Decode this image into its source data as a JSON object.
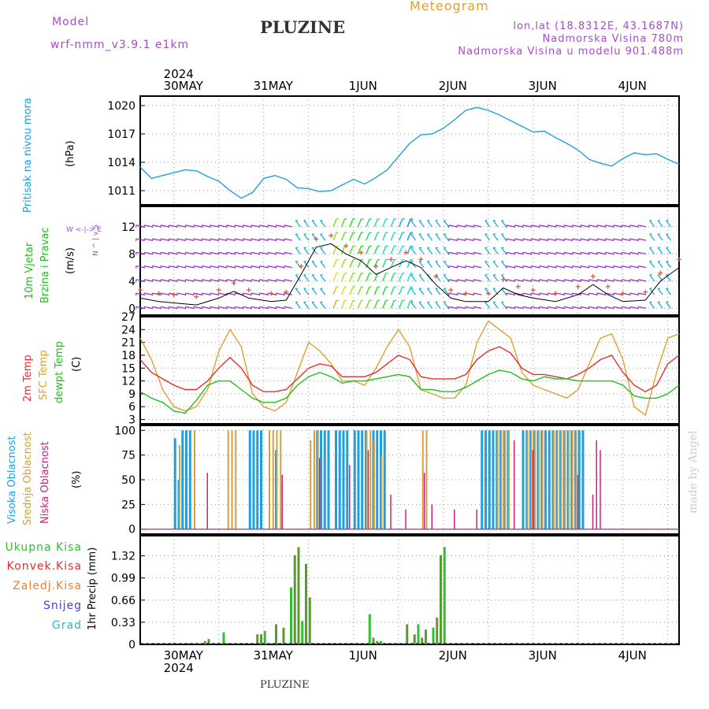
{
  "header": {
    "model_label": "Model",
    "model_name": "wrf-nmm_v3.9.1 e1km",
    "station": "PLUZINE",
    "title": "Meteogram",
    "lonlat": "lon,lat (18.8312E, 43.1687N)",
    "elevation": "Nadmorska Visina 780m",
    "model_elevation": "Nadmorska Visina u modelu 901.488m",
    "footer": "PLUZINE",
    "credit": "made by Angel"
  },
  "time_axis": {
    "year": "2024",
    "days": [
      "30MAY",
      "31MAY",
      "1JUN",
      "2JUN",
      "3JUN",
      "4JUN"
    ],
    "hours_per_day": 24,
    "first_day_offset_hours": 9,
    "span_hours": 144
  },
  "colors": {
    "pressure": "#1ea0e0",
    "temp2m": "#e03030",
    "sfc": "#e0a030",
    "dewpt": "#20c020",
    "high_cloud": "#1ea0e0",
    "mid_cloud": "#d4a040",
    "low_cloud": "#d02080",
    "precip_total": "#30c030",
    "precip_conv": "#e03030",
    "precip_bar": "#5a9a30",
    "snow": "#4040e0",
    "grad": "#20c0c0",
    "calm_barb": "#9932cc",
    "gust_marks": "#e05030"
  },
  "panels": {
    "pressure": {
      "labels": [
        "Pritisak na nivou mora",
        "(hPa)"
      ],
      "yticks": [
        "1011",
        "1014",
        "1017",
        "1020"
      ]
    },
    "wind": {
      "labels": [
        "10m Vjetar",
        "Brzina i Pravac",
        "(m/s)"
      ],
      "yticks": [
        "0",
        "4",
        "8",
        "12"
      ],
      "compass": "W <-|-> E",
      "compass_v": "N ^ | v S"
    },
    "temp": {
      "labels": [
        "2m Temp",
        "SFC Temp",
        "dewpt Temp",
        "(C)"
      ],
      "yticks": [
        "3",
        "6",
        "9",
        "12",
        "15",
        "18",
        "21",
        "24",
        "27"
      ]
    },
    "cloud": {
      "labels": [
        "Visoka Oblacnost",
        "Srednja Oblacnost",
        "Niska Oblacnost",
        "(%)"
      ],
      "yticks": [
        "0",
        "25",
        "50",
        "75",
        "100"
      ]
    },
    "precip": {
      "labels": [
        "Ukupna Kisa",
        "Konvek.Kisa",
        "Zaledj.Kisa",
        "Snijeg",
        "Grad",
        "1hr Precip (mm)"
      ],
      "yticks": [
        "0",
        "0.33",
        "0.66",
        "0.99",
        "1.32"
      ]
    }
  },
  "chart_data": [
    {
      "type": "line",
      "name": "pressure",
      "x_unit": "hours from 00 UTC 30MAY",
      "ylim": [
        1009.5,
        1021
      ],
      "series": [
        {
          "x": [
            -9,
            -6,
            -3,
            0,
            3,
            6,
            9,
            12,
            15,
            18,
            21,
            24,
            27,
            30,
            33,
            36,
            39,
            42,
            45,
            48,
            51,
            54,
            57,
            60,
            63,
            66,
            69,
            72,
            75,
            78,
            81,
            84,
            87,
            90,
            93,
            96,
            99,
            102,
            105,
            108,
            111,
            114,
            117,
            120,
            123,
            126,
            129,
            132,
            135
          ],
          "y": [
            1013.5,
            1012.3,
            1012.6,
            1012.9,
            1013.2,
            1013.1,
            1012.5,
            1012.0,
            1011.0,
            1010.2,
            1010.8,
            1012.3,
            1012.6,
            1012.2,
            1011.3,
            1011.2,
            1010.9,
            1011.0,
            1011.6,
            1012.2,
            1011.7,
            1012.4,
            1013.2,
            1014.6,
            1016.0,
            1016.9,
            1017.0,
            1017.6,
            1018.5,
            1019.5,
            1019.8,
            1019.5,
            1019.0,
            1018.4,
            1017.8,
            1017.2,
            1017.3,
            1016.6,
            1016.0,
            1015.3,
            1014.3,
            1013.9,
            1013.6,
            1014.4,
            1015.0,
            1014.8,
            1014.9,
            1014.3,
            1013.8
          ]
        }
      ]
    },
    {
      "type": "line",
      "name": "temperature",
      "ylim": [
        2,
        27
      ],
      "series": [
        {
          "x": [
            -9,
            -6,
            -3,
            0,
            3,
            6,
            9,
            12,
            15,
            18,
            21,
            24,
            27,
            30,
            33,
            36,
            39,
            42,
            45,
            48,
            51,
            54,
            57,
            60,
            63,
            66,
            69,
            72,
            75,
            78,
            81,
            84,
            87,
            90,
            93,
            96,
            99,
            102,
            105,
            108,
            111,
            114,
            117,
            120,
            123,
            126,
            129,
            132,
            135
          ],
          "y": [
            17,
            14,
            12.5,
            11,
            10,
            10,
            12,
            15,
            17.5,
            15,
            11,
            9.5,
            9.5,
            10,
            12.5,
            15,
            16,
            15.5,
            13,
            13,
            13,
            14,
            16,
            18,
            17,
            13,
            12.5,
            12.5,
            12.5,
            13.5,
            17,
            19,
            20,
            18.5,
            15,
            13.5,
            13.5,
            13,
            12.5,
            13.5,
            15,
            17,
            18,
            14,
            11,
            9.5,
            11,
            16,
            18
          ]
        },
        {
          "x": [
            -9,
            -6,
            -3,
            0,
            3,
            6,
            9,
            12,
            15,
            18,
            21,
            24,
            27,
            30,
            33,
            36,
            39,
            42,
            45,
            48,
            51,
            54,
            57,
            60,
            63,
            66,
            69,
            72,
            75,
            78,
            81,
            84,
            87,
            90,
            93,
            96,
            99,
            102,
            105,
            108,
            111,
            114,
            117,
            120,
            123,
            126,
            129,
            132,
            135
          ],
          "y": [
            22,
            17,
            10,
            6,
            5,
            6,
            10,
            19,
            24,
            20,
            9,
            6,
            5,
            7,
            14,
            21,
            19,
            16,
            12,
            12,
            11,
            15,
            20,
            24,
            20,
            10,
            9,
            8,
            8,
            11,
            21,
            26,
            24,
            22,
            14,
            11,
            10,
            9,
            8,
            10,
            16,
            22,
            23,
            17,
            6,
            4,
            14,
            22,
            23
          ]
        },
        {
          "x": [
            -9,
            -6,
            -3,
            0,
            3,
            6,
            9,
            12,
            15,
            18,
            21,
            24,
            27,
            30,
            33,
            36,
            39,
            42,
            45,
            48,
            51,
            54,
            57,
            60,
            63,
            66,
            69,
            72,
            75,
            78,
            81,
            84,
            87,
            90,
            93,
            96,
            99,
            102,
            105,
            108,
            111,
            114,
            117,
            120,
            123,
            126,
            129,
            132,
            135
          ],
          "y": [
            9.5,
            8,
            7,
            5,
            4.5,
            7.5,
            11,
            12,
            12,
            10,
            8,
            7,
            7,
            8,
            11,
            13,
            14,
            13,
            11.5,
            12,
            12,
            12.5,
            13,
            13.5,
            13,
            10,
            10,
            9.5,
            9.5,
            10.5,
            12,
            13.5,
            14.5,
            14,
            12.5,
            12,
            13,
            12.5,
            12.5,
            12,
            12,
            12,
            12,
            11,
            8.5,
            8,
            8,
            9,
            11
          ]
        }
      ]
    },
    {
      "type": "bar",
      "name": "cloud",
      "ylim": [
        0,
        100
      ],
      "series": [
        {
          "x": [
            0,
            1,
            2,
            3,
            4,
            20,
            21,
            22,
            23,
            27,
            38,
            39,
            40,
            41,
            43,
            44,
            45,
            46,
            48,
            49,
            50,
            51,
            53,
            54,
            55,
            56,
            82,
            83,
            84,
            85,
            86,
            87,
            88,
            89,
            93,
            94,
            95,
            96,
            97,
            98,
            99,
            100,
            101,
            102,
            103,
            104,
            105,
            106,
            107,
            108,
            109
          ],
          "y": [
            92,
            50,
            100,
            100,
            100,
            100,
            100,
            100,
            100,
            80,
            100,
            100,
            100,
            100,
            100,
            100,
            100,
            100,
            100,
            100,
            100,
            100,
            100,
            100,
            100,
            100,
            100,
            100,
            100,
            100,
            100,
            100,
            100,
            100,
            100,
            100,
            100,
            100,
            100,
            100,
            100,
            100,
            100,
            100,
            100,
            100,
            100,
            100,
            100,
            100,
            100
          ]
        },
        {
          "x": [
            1,
            5,
            14,
            15,
            16,
            25,
            26,
            27,
            28,
            36,
            37,
            38,
            51,
            52,
            53,
            55,
            66,
            67,
            86,
            87,
            88,
            89,
            94,
            95,
            96,
            97,
            98,
            101,
            102,
            103,
            104,
            105,
            106,
            107
          ],
          "y": [
            85,
            100,
            100,
            100,
            100,
            100,
            100,
            100,
            100,
            90,
            100,
            100,
            100,
            100,
            90,
            75,
            100,
            100,
            100,
            100,
            100,
            100,
            100,
            100,
            100,
            100,
            100,
            100,
            100,
            100,
            100,
            100,
            100,
            100
          ]
        },
        {
          "x": [
            9,
            29,
            39,
            47,
            52,
            58,
            62,
            67,
            69,
            75,
            81,
            91,
            96,
            108,
            112,
            113,
            114
          ],
          "y": [
            57,
            55,
            72,
            65,
            80,
            35,
            20,
            57,
            25,
            20,
            20,
            90,
            80,
            55,
            35,
            90,
            80
          ]
        }
      ]
    },
    {
      "type": "bar",
      "name": "precip",
      "ylim": [
        0,
        1.45
      ],
      "series": [
        {
          "x": [
            6,
            8,
            9,
            13,
            22,
            23,
            24,
            27,
            29,
            31,
            32,
            33,
            34,
            35,
            36,
            52,
            53,
            54,
            55,
            62,
            64,
            65,
            66,
            67,
            69,
            70,
            71,
            72
          ],
          "y": [
            0.02,
            0.05,
            0.08,
            0.18,
            0.15,
            0.15,
            0.2,
            0.3,
            0.25,
            0.85,
            1.33,
            1.45,
            0.35,
            1.2,
            0.7,
            0.45,
            0.1,
            0.05,
            0.05,
            0.3,
            0.15,
            0.3,
            0.1,
            0.22,
            0.25,
            0.4,
            1.33,
            1.45
          ]
        }
      ]
    }
  ]
}
